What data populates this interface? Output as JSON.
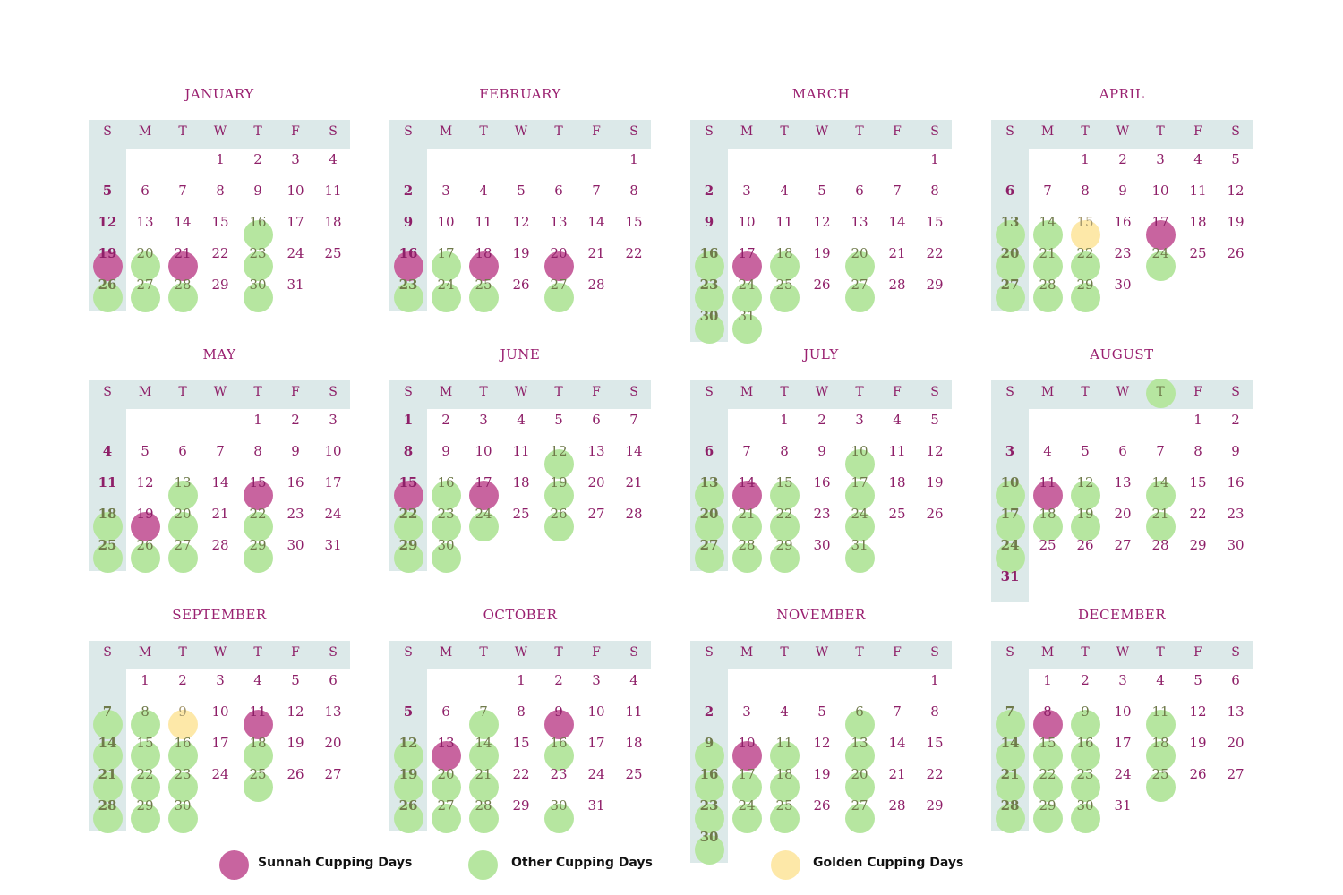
{
  "weekdays": [
    "S",
    "M",
    "T",
    "W",
    "T",
    "F",
    "S"
  ],
  "colors": {
    "sunnah": "#c8649f",
    "other": "#b6e6a0",
    "golden": "#fde8a8",
    "band": "#dce9e9",
    "text": "#8e1f68"
  },
  "months": [
    {
      "name": "JANUARY",
      "start": 3,
      "days": 31,
      "sunnah": [
        19,
        21
      ],
      "other": [
        16,
        20,
        23,
        26,
        27,
        28,
        30
      ],
      "golden": []
    },
    {
      "name": "FEBRUARY",
      "start": 6,
      "days": 28,
      "sunnah": [
        16,
        18,
        20
      ],
      "other": [
        17,
        23,
        24,
        25,
        27
      ],
      "golden": []
    },
    {
      "name": "MARCH",
      "start": 6,
      "days": 31,
      "sunnah": [
        17
      ],
      "other": [
        16,
        18,
        20,
        23,
        24,
        25,
        27,
        30,
        31
      ],
      "golden": []
    },
    {
      "name": "APRIL",
      "start": 2,
      "days": 30,
      "sunnah": [
        17
      ],
      "other": [
        13,
        14,
        20,
        21,
        22,
        24,
        27,
        28,
        29
      ],
      "golden": [
        15
      ]
    },
    {
      "name": "MAY",
      "start": 4,
      "days": 31,
      "sunnah": [
        15,
        19
      ],
      "other": [
        13,
        18,
        20,
        22,
        25,
        26,
        27,
        29
      ],
      "golden": []
    },
    {
      "name": "JUNE",
      "start": 0,
      "days": 30,
      "sunnah": [
        15,
        17
      ],
      "other": [
        12,
        16,
        19,
        22,
        23,
        24,
        26,
        29,
        30
      ],
      "golden": []
    },
    {
      "name": "JULY",
      "start": 2,
      "days": 31,
      "sunnah": [
        14
      ],
      "other": [
        10,
        13,
        15,
        17,
        20,
        21,
        22,
        24,
        27,
        28,
        29,
        31
      ],
      "golden": []
    },
    {
      "name": "AUGUST",
      "start": 5,
      "days": 31,
      "sunnah": [
        11
      ],
      "other": [
        10,
        12,
        14,
        17,
        18,
        19,
        21,
        24
      ],
      "golden": [],
      "header_highlight": 4
    },
    {
      "name": "SEPTEMBER",
      "start": 1,
      "days": 30,
      "sunnah": [
        11
      ],
      "other": [
        7,
        8,
        14,
        15,
        16,
        18,
        21,
        22,
        23,
        25,
        28,
        29,
        30
      ],
      "golden": [
        9
      ]
    },
    {
      "name": "OCTOBER",
      "start": 3,
      "days": 31,
      "sunnah": [
        9,
        13
      ],
      "other": [
        7,
        12,
        14,
        16,
        19,
        20,
        21,
        26,
        27,
        28,
        30
      ],
      "golden": []
    },
    {
      "name": "NOVEMBER",
      "start": 6,
      "days": 30,
      "sunnah": [
        10
      ],
      "other": [
        6,
        9,
        11,
        13,
        16,
        17,
        18,
        20,
        23,
        24,
        25,
        27,
        30
      ],
      "golden": []
    },
    {
      "name": "DECEMBER",
      "start": 1,
      "days": 31,
      "sunnah": [
        8
      ],
      "other": [
        7,
        9,
        11,
        14,
        15,
        16,
        18,
        21,
        22,
        23,
        25,
        28,
        29,
        30
      ],
      "golden": []
    }
  ],
  "legend": [
    {
      "key": "sunnah",
      "label": "Sunnah Cupping Days"
    },
    {
      "key": "other",
      "label": "Other Cupping Days"
    },
    {
      "key": "golden",
      "label": "Golden Cupping Days"
    }
  ]
}
